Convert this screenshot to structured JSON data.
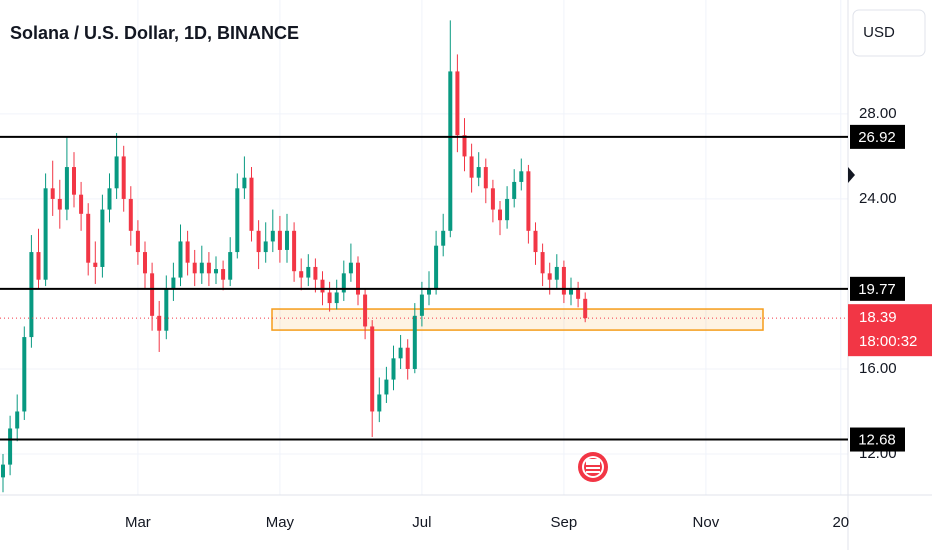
{
  "chart_data": {
    "type": "candlestick",
    "title": "Solana / U.S. Dollar, 1D, BINANCE",
    "currency": "USD",
    "categories": [
      null,
      null,
      null,
      null,
      null,
      null,
      null,
      null,
      null,
      null,
      null,
      null,
      null,
      null,
      null,
      null,
      null,
      null,
      null,
      "Mar",
      null,
      null,
      null,
      null,
      null,
      null,
      null,
      null,
      null,
      null,
      null,
      null,
      null,
      null,
      null,
      null,
      null,
      null,
      null,
      "May",
      null,
      null,
      null,
      null,
      null,
      null,
      null,
      null,
      null,
      null,
      null,
      null,
      null,
      null,
      null,
      null,
      null,
      null,
      null,
      "Jul",
      null,
      null,
      null,
      null,
      null,
      null,
      null,
      null,
      null,
      null,
      null,
      null,
      null,
      null,
      null,
      null,
      null,
      null,
      null,
      "Sep",
      null,
      null,
      null,
      null,
      null,
      null,
      null,
      null,
      null,
      null,
      null,
      null,
      null,
      null,
      null,
      null,
      null,
      null,
      null,
      "Nov",
      null,
      null,
      null,
      null,
      null,
      null,
      null,
      null,
      null,
      null,
      null,
      null,
      null,
      null,
      null,
      null,
      null,
      null,
      "20"
    ],
    "open": [
      10.9,
      11.5,
      13.2,
      14.0,
      17.5,
      21.5,
      20.2,
      24.5,
      24.0,
      23.5,
      25.5,
      24.2,
      23.3,
      21.0,
      20.8,
      23.5,
      24.5,
      26.0,
      24.0,
      22.5,
      21.5,
      20.5,
      18.5,
      17.8,
      19.8,
      20.3,
      22.0,
      21.0,
      20.5,
      21.0,
      20.5,
      20.7,
      20.2,
      21.5,
      24.5,
      25.0,
      22.5,
      21.5,
      22.0,
      22.5,
      21.6,
      22.5,
      20.6,
      20.3,
      20.8,
      20.2,
      19.6,
      19.1,
      19.6,
      20.5,
      21.0,
      19.5,
      18.0,
      14.0,
      14.8,
      15.5,
      16.5,
      17.0,
      16.0,
      18.5,
      19.5,
      19.8,
      21.8,
      22.5,
      30.0,
      27.0,
      26.0,
      25.0,
      25.5,
      24.5,
      23.5,
      23.0,
      24.0,
      24.8,
      25.3,
      22.5,
      21.5,
      20.5,
      20.2,
      20.8,
      19.5,
      19.8,
      19.3,
      null,
      null,
      null,
      null,
      null,
      null,
      null,
      null,
      null,
      null,
      null,
      null,
      null,
      null,
      null,
      null,
      null,
      null,
      null,
      null,
      null,
      null,
      null,
      null,
      null,
      null,
      null,
      null,
      null,
      null,
      null,
      null,
      null,
      null,
      null,
      null
    ],
    "high": [
      12.0,
      13.8,
      14.8,
      18.0,
      22.3,
      22.6,
      25.2,
      25.8,
      24.9,
      26.9,
      26.2,
      24.8,
      23.8,
      22.0,
      24.2,
      25.2,
      27.1,
      26.5,
      24.6,
      23.0,
      22.0,
      21.0,
      19.2,
      20.4,
      21.0,
      22.8,
      22.5,
      21.6,
      21.8,
      21.5,
      21.3,
      21.1,
      22.2,
      25.2,
      26.0,
      25.5,
      23.0,
      22.9,
      23.5,
      23.2,
      23.3,
      22.9,
      21.2,
      21.4,
      21.2,
      20.6,
      20.1,
      20.2,
      21.1,
      21.9,
      21.3,
      19.8,
      18.3,
      15.6,
      16.1,
      17.1,
      17.6,
      17.4,
      19.1,
      20.1,
      20.6,
      22.5,
      23.3,
      32.4,
      30.8,
      27.8,
      26.6,
      26.2,
      25.9,
      24.9,
      23.9,
      24.6,
      25.4,
      25.9,
      25.6,
      22.9,
      21.9,
      21.0,
      21.4,
      21.1,
      20.3,
      20.1,
      19.6,
      null,
      null,
      null,
      null,
      null,
      null,
      null,
      null,
      null,
      null,
      null,
      null,
      null,
      null,
      null,
      null,
      null,
      null,
      null,
      null,
      null,
      null,
      null,
      null,
      null,
      null,
      null,
      null,
      null,
      null,
      null,
      null,
      null,
      null,
      null,
      null
    ],
    "low": [
      10.2,
      11.0,
      12.6,
      13.6,
      17.0,
      19.8,
      19.9,
      23.2,
      22.6,
      23.0,
      23.6,
      22.5,
      20.4,
      20.0,
      20.3,
      22.9,
      24.0,
      23.4,
      21.8,
      20.9,
      19.8,
      17.8,
      16.8,
      17.4,
      19.2,
      19.9,
      20.4,
      19.9,
      20.0,
      19.9,
      20.0,
      19.7,
      19.9,
      21.2,
      24.0,
      22.0,
      20.7,
      21.0,
      21.5,
      21.0,
      21.0,
      20.1,
      19.7,
      19.9,
      19.6,
      19.0,
      18.7,
      18.8,
      19.2,
      20.1,
      19.0,
      17.4,
      12.8,
      13.5,
      14.4,
      15.0,
      16.0,
      15.5,
      15.8,
      18.0,
      19.0,
      19.5,
      21.3,
      22.2,
      26.2,
      25.3,
      24.3,
      24.6,
      23.8,
      22.9,
      22.3,
      22.6,
      23.6,
      24.4,
      21.9,
      20.9,
      19.9,
      19.5,
      19.8,
      19.1,
      19.0,
      18.9,
      18.2,
      null,
      null,
      null,
      null,
      null,
      null,
      null,
      null,
      null,
      null,
      null,
      null,
      null,
      null,
      null,
      null,
      null,
      null,
      null,
      null,
      null,
      null,
      null,
      null,
      null,
      null,
      null,
      null,
      null,
      null,
      null,
      null,
      null,
      null,
      null,
      null
    ],
    "close": [
      11.5,
      13.2,
      14.0,
      17.5,
      21.5,
      20.2,
      24.5,
      24.0,
      23.5,
      25.5,
      24.2,
      23.3,
      21.0,
      20.8,
      23.5,
      24.5,
      26.0,
      24.0,
      22.5,
      21.5,
      20.5,
      18.5,
      17.8,
      19.8,
      20.3,
      22.0,
      21.0,
      20.5,
      21.0,
      20.5,
      20.7,
      20.2,
      21.5,
      24.5,
      25.0,
      22.5,
      21.5,
      22.0,
      22.5,
      21.6,
      22.5,
      20.6,
      20.3,
      20.8,
      20.2,
      19.6,
      19.1,
      19.6,
      20.5,
      21.0,
      19.5,
      18.0,
      14.0,
      14.8,
      15.5,
      16.5,
      17.0,
      16.0,
      18.5,
      19.5,
      19.8,
      21.8,
      22.5,
      30.0,
      27.0,
      26.0,
      25.0,
      25.5,
      24.5,
      23.5,
      23.0,
      24.0,
      24.8,
      25.3,
      22.5,
      21.5,
      20.5,
      20.2,
      20.8,
      19.5,
      19.8,
      19.3,
      18.39,
      null,
      null,
      null,
      null,
      null,
      null,
      null,
      null,
      null,
      null,
      null,
      null,
      null,
      null,
      null,
      null,
      null,
      null,
      null,
      null,
      null,
      null,
      null,
      null,
      null,
      null,
      null,
      null,
      null,
      null,
      null,
      null,
      null,
      null,
      null,
      null
    ],
    "up_color": "#089981",
    "down_color": "#f23645",
    "ylim": [
      10.07,
      33.36
    ],
    "yticks": [
      {
        "value": 12,
        "label": "12.00"
      },
      {
        "value": 16,
        "label": "16.00"
      },
      {
        "value": 24,
        "label": "24.00"
      },
      {
        "value": 28,
        "label": "28.00"
      }
    ],
    "grid": true,
    "levels": [
      26.92,
      19.77,
      12.68
    ],
    "zone": {
      "top": 18.82,
      "bottom": 17.83,
      "color": "#f59c1a"
    },
    "last_price": 18.39,
    "countdown": "18:00:32"
  }
}
